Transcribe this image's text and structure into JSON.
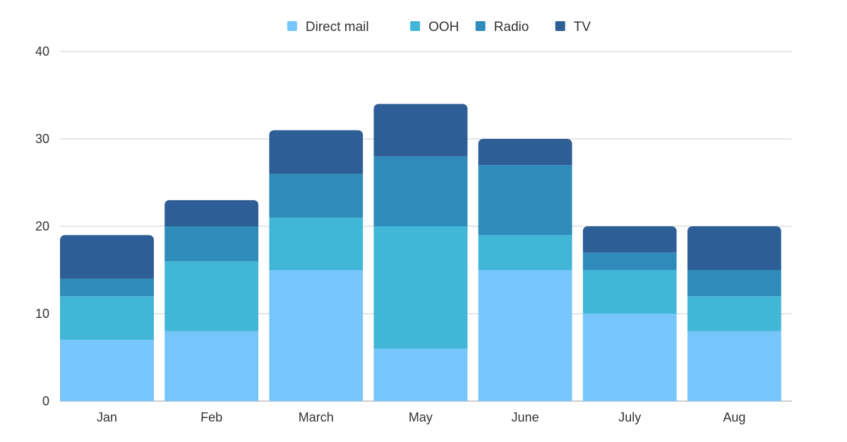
{
  "chart_data": {
    "type": "bar",
    "stacked": true,
    "categories": [
      "Jan",
      "Feb",
      "March",
      "May",
      "June",
      "July",
      "Aug"
    ],
    "series": [
      {
        "name": "Direct mail",
        "color": "#77c6fb",
        "values": [
          7,
          8,
          15,
          6,
          15,
          10,
          8
        ]
      },
      {
        "name": "OOH",
        "color": "#42b6d6",
        "values": [
          5,
          8,
          6,
          14,
          4,
          5,
          4
        ]
      },
      {
        "name": "Radio",
        "color": "#2f8cba",
        "values": [
          2,
          4,
          5,
          8,
          8,
          2,
          3
        ]
      },
      {
        "name": "TV",
        "color": "#2e5e96",
        "values": [
          5,
          3,
          5,
          6,
          3,
          3,
          5
        ]
      }
    ],
    "ylim": [
      0,
      40
    ],
    "yticks": [
      0,
      10,
      20,
      30,
      40
    ],
    "grid": true,
    "legend": "top-center"
  }
}
